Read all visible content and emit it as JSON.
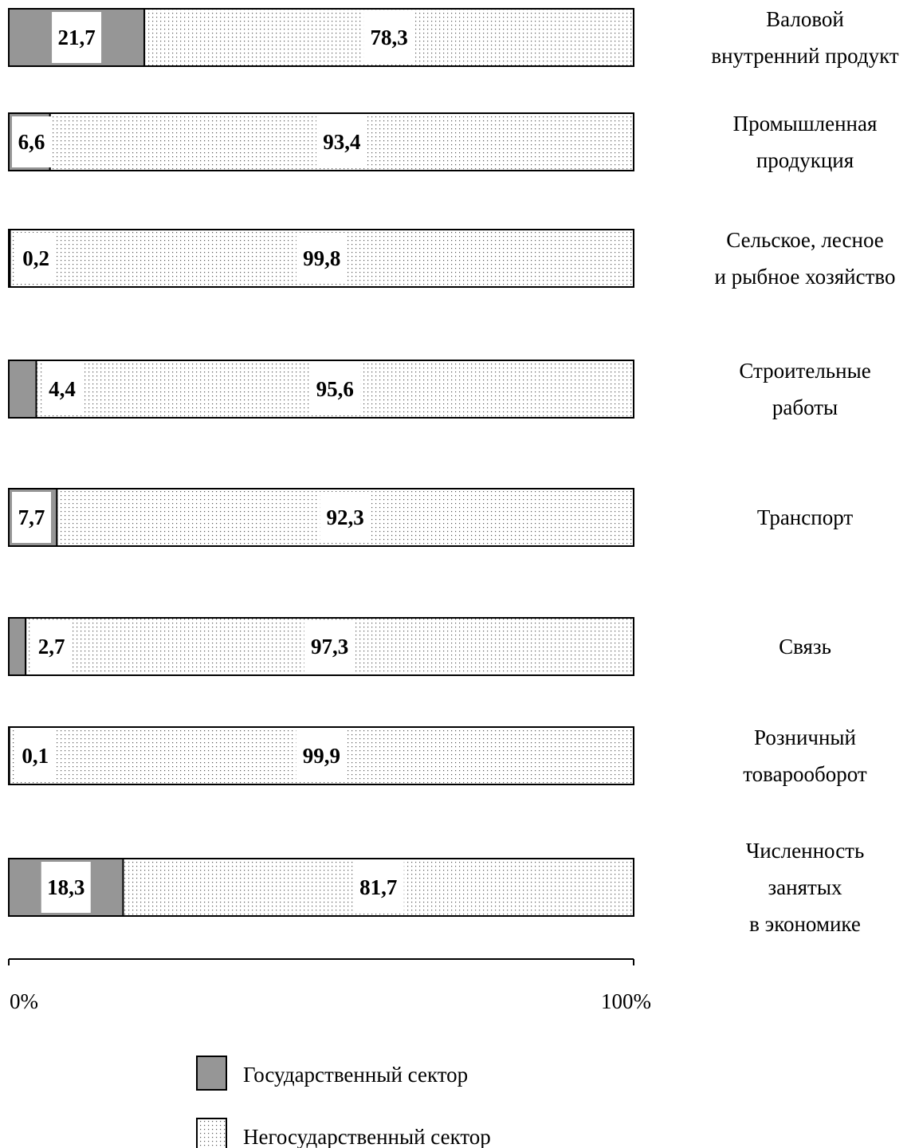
{
  "chart_data": {
    "type": "bar",
    "orientation": "horizontal",
    "stacked": true,
    "categories": [
      [
        "Валовой",
        "внутренний продукт"
      ],
      [
        "Промышленная",
        "продукция"
      ],
      [
        "Сельское, лесное",
        "и рыбное хозяйство"
      ],
      [
        "Строительные",
        "работы"
      ],
      [
        "Транспорт"
      ],
      [
        "Связь"
      ],
      [
        "Розничный",
        "товарооборот"
      ],
      [
        "Численность",
        "занятых",
        "в экономике"
      ]
    ],
    "series": [
      {
        "name": "Государственный сектор",
        "values": [
          21.7,
          6.6,
          0.2,
          4.4,
          7.7,
          2.7,
          0.1,
          18.3
        ],
        "labels": [
          "21,7",
          "6,6",
          "0,2",
          "4,4",
          "7,7",
          "2,7",
          "0,1",
          "18,3"
        ],
        "color": "#969696"
      },
      {
        "name": "Негосударственный сектор",
        "values": [
          78.3,
          93.4,
          99.8,
          95.6,
          92.3,
          97.3,
          99.9,
          81.7
        ],
        "labels": [
          "78,3",
          "93,4",
          "99,8",
          "95,6",
          "92,3",
          "97,3",
          "99,9",
          "81,7"
        ],
        "color": "#ffffff"
      }
    ],
    "xlim": [
      0,
      100
    ],
    "x_ticks": [
      "0%",
      "100%"
    ],
    "grid": false,
    "legend_position": "bottom-center"
  }
}
